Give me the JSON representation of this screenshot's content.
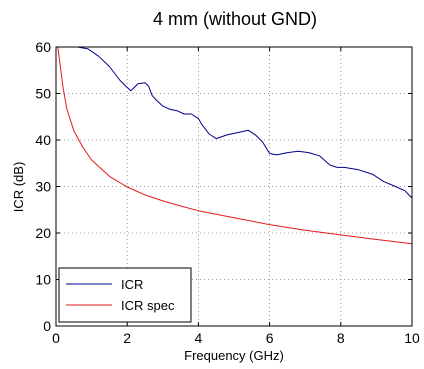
{
  "chart_data": {
    "type": "line",
    "title": "4 mm (without GND)",
    "xlabel": "Frequency (GHz)",
    "ylabel": "ICR (dB)",
    "xlim": [
      0,
      10
    ],
    "ylim": [
      0,
      60
    ],
    "xticks": [
      0,
      2,
      4,
      6,
      8,
      10
    ],
    "yticks": [
      0,
      10,
      20,
      30,
      40,
      50,
      60
    ],
    "grid": true,
    "legend_position": "bottom-left",
    "series": [
      {
        "name": "ICR",
        "color": "#00008b",
        "x": [
          0.0,
          0.3,
          0.6,
          0.9,
          1.2,
          1.5,
          1.8,
          2.0,
          2.1,
          2.2,
          2.3,
          2.5,
          2.6,
          2.7,
          2.8,
          3.0,
          3.2,
          3.4,
          3.6,
          3.8,
          4.0,
          4.1,
          4.3,
          4.5,
          4.8,
          5.1,
          5.4,
          5.6,
          5.8,
          6.0,
          6.2,
          6.5,
          6.8,
          7.1,
          7.4,
          7.7,
          7.9,
          8.1,
          8.5,
          8.9,
          9.2,
          9.5,
          9.8,
          10.0
        ],
        "y": [
          60.0,
          60.0,
          60.0,
          59.6,
          58.0,
          55.8,
          52.8,
          51.3,
          50.6,
          51.3,
          52.1,
          52.3,
          51.6,
          49.6,
          48.7,
          47.3,
          46.6,
          46.3,
          45.6,
          45.6,
          44.6,
          43.3,
          41.3,
          40.3,
          41.1,
          41.6,
          42.1,
          41.1,
          39.6,
          37.1,
          36.8,
          37.3,
          37.6,
          37.3,
          36.6,
          34.6,
          34.1,
          34.1,
          33.6,
          32.6,
          31.1,
          30.1,
          29.1,
          27.5
        ]
      },
      {
        "name": "ICR spec",
        "color": "#e31a1c",
        "x": [
          0.05,
          0.1,
          0.2,
          0.3,
          0.5,
          0.75,
          1.0,
          1.5,
          2.0,
          2.5,
          3.0,
          3.5,
          4.0,
          5.0,
          6.0,
          7.0,
          8.0,
          9.0,
          10.0
        ],
        "y": [
          60.0,
          57.0,
          51.2,
          46.8,
          42.0,
          38.5,
          35.7,
          32.2,
          29.9,
          28.2,
          26.9,
          25.8,
          24.8,
          23.3,
          21.8,
          20.6,
          19.6,
          18.6,
          17.7
        ]
      }
    ]
  }
}
